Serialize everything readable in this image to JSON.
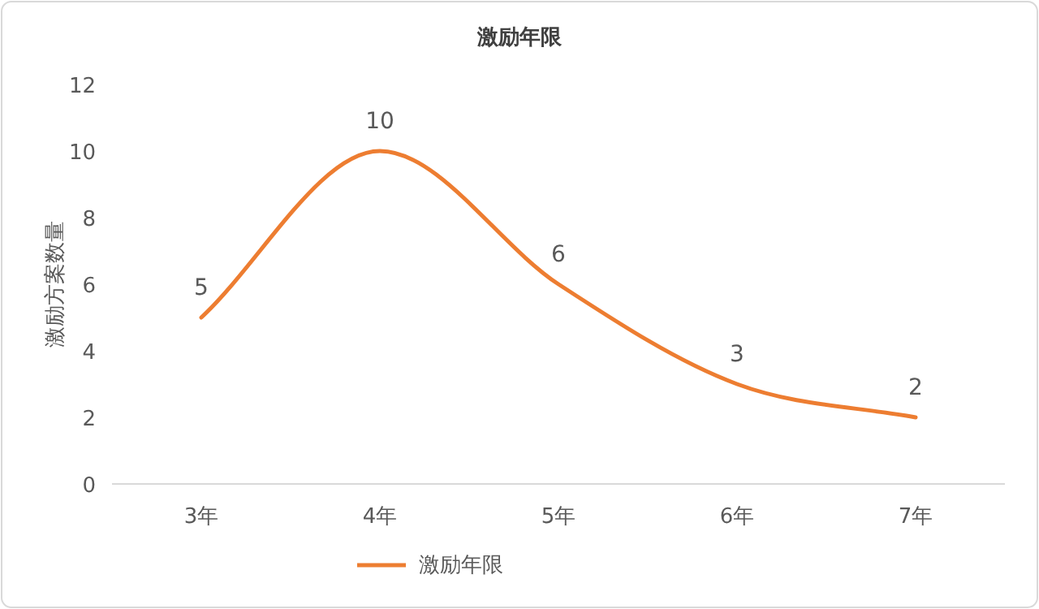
{
  "chart_data": {
    "type": "line",
    "title": "激励年限",
    "ylabel": "激励方案数量",
    "categories": [
      "3年",
      "4年",
      "5年",
      "6年",
      "7年"
    ],
    "series": [
      {
        "name": "激励年限",
        "color": "#ed7d31",
        "values": [
          5,
          10,
          6,
          3,
          2
        ]
      }
    ],
    "ylim": [
      0,
      12
    ],
    "yticks": [
      0,
      2,
      4,
      6,
      8,
      10,
      12
    ],
    "data_labels": true,
    "legend": "bottom",
    "grid": false,
    "line_style": "solid"
  }
}
